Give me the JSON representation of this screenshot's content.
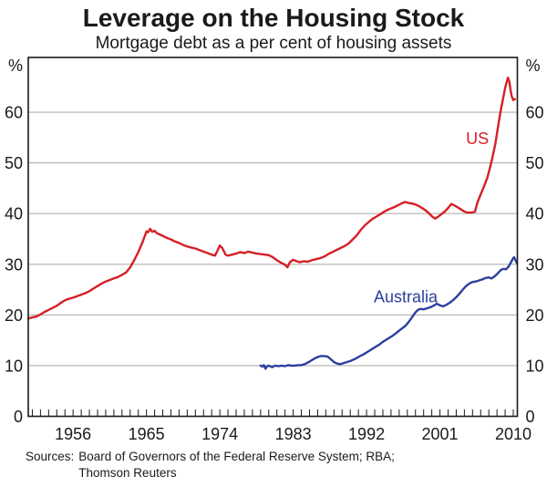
{
  "title": "Leverage on the Housing Stock",
  "subtitle": "Mortgage debt as a per cent of housing assets",
  "sources": {
    "label": "Sources:",
    "line1": "Board of Governors of the Federal Reserve System; RBA;",
    "line2": "Thomson Reuters"
  },
  "chart_data": {
    "type": "line",
    "title": "Leverage on the Housing Stock",
    "subtitle": "Mortgage debt as a per cent of housing assets",
    "unit_label": "%",
    "xlim": [
      1950.5,
      2010.5
    ],
    "ylim": [
      0,
      70.8
    ],
    "x_ticks": [
      1956,
      1965,
      1974,
      1983,
      1992,
      2001,
      2010
    ],
    "y_ticks": [
      0,
      10,
      20,
      30,
      40,
      50,
      60
    ],
    "minor_x_tick_step": 1,
    "grid": "horizontal",
    "legend_position": "inline-labels",
    "axis_color": "#1a1a1a",
    "grid_color": "#b0b0b0",
    "series": [
      {
        "name": "US",
        "color": "#d61f26",
        "label_anchor": [
          2005.6,
          54.8
        ],
        "points": [
          [
            1950.5,
            19.3
          ],
          [
            1951,
            19.5
          ],
          [
            1951.5,
            19.7
          ],
          [
            1952,
            20.1
          ],
          [
            1952.5,
            20.6
          ],
          [
            1953,
            21.0
          ],
          [
            1953.5,
            21.4
          ],
          [
            1954,
            21.8
          ],
          [
            1954.5,
            22.4
          ],
          [
            1955,
            22.9
          ],
          [
            1955.5,
            23.2
          ],
          [
            1956,
            23.4
          ],
          [
            1956.5,
            23.7
          ],
          [
            1957,
            24.0
          ],
          [
            1957.5,
            24.3
          ],
          [
            1958,
            24.7
          ],
          [
            1958.5,
            25.2
          ],
          [
            1959,
            25.7
          ],
          [
            1959.5,
            26.2
          ],
          [
            1960,
            26.6
          ],
          [
            1960.5,
            26.9
          ],
          [
            1961,
            27.2
          ],
          [
            1961.5,
            27.5
          ],
          [
            1962,
            27.9
          ],
          [
            1962.5,
            28.4
          ],
          [
            1963,
            29.4
          ],
          [
            1963.5,
            30.8
          ],
          [
            1964,
            32.4
          ],
          [
            1964.5,
            34.3
          ],
          [
            1964.8,
            35.6
          ],
          [
            1965,
            36.5
          ],
          [
            1965.2,
            36.3
          ],
          [
            1965.45,
            37.0
          ],
          [
            1965.7,
            36.4
          ],
          [
            1966,
            36.6
          ],
          [
            1966.3,
            36.1
          ],
          [
            1966.6,
            35.9
          ],
          [
            1967,
            35.6
          ],
          [
            1967.5,
            35.2
          ],
          [
            1968,
            34.9
          ],
          [
            1968.5,
            34.5
          ],
          [
            1969,
            34.2
          ],
          [
            1969.5,
            33.8
          ],
          [
            1970,
            33.5
          ],
          [
            1970.5,
            33.3
          ],
          [
            1971,
            33.1
          ],
          [
            1971.5,
            32.8
          ],
          [
            1972,
            32.5
          ],
          [
            1972.5,
            32.2
          ],
          [
            1973,
            31.9
          ],
          [
            1973.4,
            31.7
          ],
          [
            1973.7,
            32.6
          ],
          [
            1974,
            33.7
          ],
          [
            1974.3,
            33.2
          ],
          [
            1974.7,
            31.9
          ],
          [
            1975,
            31.7
          ],
          [
            1975.5,
            31.9
          ],
          [
            1976,
            32.1
          ],
          [
            1976.5,
            32.4
          ],
          [
            1977,
            32.2
          ],
          [
            1977.5,
            32.5
          ],
          [
            1978,
            32.3
          ],
          [
            1978.5,
            32.1
          ],
          [
            1979,
            32.0
          ],
          [
            1979.5,
            31.9
          ],
          [
            1980,
            31.8
          ],
          [
            1980.5,
            31.4
          ],
          [
            1981,
            30.8
          ],
          [
            1981.5,
            30.3
          ],
          [
            1982,
            29.9
          ],
          [
            1982.3,
            29.4
          ],
          [
            1982.6,
            30.4
          ],
          [
            1983,
            30.9
          ],
          [
            1983.4,
            30.6
          ],
          [
            1983.8,
            30.4
          ],
          [
            1984.3,
            30.6
          ],
          [
            1984.8,
            30.5
          ],
          [
            1985.3,
            30.8
          ],
          [
            1985.8,
            31.0
          ],
          [
            1986.3,
            31.2
          ],
          [
            1986.8,
            31.5
          ],
          [
            1987.3,
            32.0
          ],
          [
            1987.8,
            32.4
          ],
          [
            1988.3,
            32.8
          ],
          [
            1988.8,
            33.2
          ],
          [
            1989.3,
            33.6
          ],
          [
            1989.8,
            34.1
          ],
          [
            1990.3,
            34.9
          ],
          [
            1990.8,
            35.7
          ],
          [
            1991.3,
            36.8
          ],
          [
            1991.8,
            37.7
          ],
          [
            1992.3,
            38.4
          ],
          [
            1992.8,
            39.0
          ],
          [
            1993.3,
            39.5
          ],
          [
            1993.8,
            40.0
          ],
          [
            1994.3,
            40.5
          ],
          [
            1994.8,
            40.9
          ],
          [
            1995.3,
            41.2
          ],
          [
            1995.8,
            41.6
          ],
          [
            1996.3,
            42.0
          ],
          [
            1996.7,
            42.3
          ],
          [
            1997.1,
            42.1
          ],
          [
            1997.5,
            42.0
          ],
          [
            1998,
            41.8
          ],
          [
            1998.5,
            41.4
          ],
          [
            1999,
            40.9
          ],
          [
            1999.5,
            40.3
          ],
          [
            2000,
            39.5
          ],
          [
            2000.4,
            39.0
          ],
          [
            2000.8,
            39.4
          ],
          [
            2001.2,
            39.9
          ],
          [
            2001.6,
            40.4
          ],
          [
            2002,
            41.1
          ],
          [
            2002.4,
            41.9
          ],
          [
            2002.8,
            41.6
          ],
          [
            2003.2,
            41.2
          ],
          [
            2003.6,
            40.8
          ],
          [
            2004,
            40.4
          ],
          [
            2004.4,
            40.2
          ],
          [
            2004.9,
            40.2
          ],
          [
            2005.3,
            40.4
          ],
          [
            2005.6,
            42.2
          ],
          [
            2006,
            43.8
          ],
          [
            2006.4,
            45.3
          ],
          [
            2006.8,
            47.0
          ],
          [
            2007.1,
            48.8
          ],
          [
            2007.4,
            50.8
          ],
          [
            2007.8,
            53.8
          ],
          [
            2008.1,
            56.8
          ],
          [
            2008.4,
            59.8
          ],
          [
            2008.7,
            62.3
          ],
          [
            2009,
            64.8
          ],
          [
            2009.2,
            66.0
          ],
          [
            2009.35,
            66.8
          ],
          [
            2009.5,
            66.1
          ],
          [
            2009.65,
            64.5
          ],
          [
            2009.8,
            63.2
          ],
          [
            2010,
            62.4
          ],
          [
            2010.2,
            62.6
          ]
        ]
      },
      {
        "name": "Australia",
        "color": "#2b3f9e",
        "label_anchor": [
          1996.8,
          23.6
        ],
        "points": [
          [
            1979,
            10.0
          ],
          [
            1979.2,
            9.8
          ],
          [
            1979.4,
            10.1
          ],
          [
            1979.6,
            9.4
          ],
          [
            1979.8,
            9.9
          ],
          [
            1980,
            10.0
          ],
          [
            1980.4,
            9.7
          ],
          [
            1980.8,
            10.0
          ],
          [
            1981.2,
            9.9
          ],
          [
            1981.6,
            10.0
          ],
          [
            1982,
            9.9
          ],
          [
            1982.4,
            10.1
          ],
          [
            1982.8,
            10.0
          ],
          [
            1983.2,
            10.0
          ],
          [
            1983.6,
            10.1
          ],
          [
            1984,
            10.1
          ],
          [
            1984.4,
            10.3
          ],
          [
            1984.8,
            10.6
          ],
          [
            1985.2,
            11.0
          ],
          [
            1985.6,
            11.4
          ],
          [
            1986,
            11.7
          ],
          [
            1986.4,
            11.9
          ],
          [
            1986.8,
            11.9
          ],
          [
            1987.2,
            11.8
          ],
          [
            1987.6,
            11.3
          ],
          [
            1988,
            10.7
          ],
          [
            1988.4,
            10.4
          ],
          [
            1988.8,
            10.3
          ],
          [
            1989.2,
            10.5
          ],
          [
            1989.6,
            10.7
          ],
          [
            1990,
            10.9
          ],
          [
            1990.4,
            11.2
          ],
          [
            1990.8,
            11.5
          ],
          [
            1991.2,
            11.9
          ],
          [
            1991.6,
            12.2
          ],
          [
            1992,
            12.6
          ],
          [
            1992.4,
            13.0
          ],
          [
            1992.8,
            13.4
          ],
          [
            1993.2,
            13.8
          ],
          [
            1993.6,
            14.2
          ],
          [
            1994,
            14.7
          ],
          [
            1994.4,
            15.1
          ],
          [
            1994.8,
            15.5
          ],
          [
            1995.2,
            15.9
          ],
          [
            1995.6,
            16.4
          ],
          [
            1996,
            16.9
          ],
          [
            1996.4,
            17.4
          ],
          [
            1996.8,
            17.9
          ],
          [
            1997.2,
            18.7
          ],
          [
            1997.6,
            19.6
          ],
          [
            1998,
            20.5
          ],
          [
            1998.3,
            21.0
          ],
          [
            1998.6,
            21.2
          ],
          [
            1999,
            21.1
          ],
          [
            1999.4,
            21.3
          ],
          [
            1999.8,
            21.5
          ],
          [
            2000.2,
            21.8
          ],
          [
            2000.6,
            22.2
          ],
          [
            2001,
            21.9
          ],
          [
            2001.4,
            21.7
          ],
          [
            2001.8,
            22.0
          ],
          [
            2002.2,
            22.4
          ],
          [
            2002.6,
            22.9
          ],
          [
            2003,
            23.5
          ],
          [
            2003.4,
            24.2
          ],
          [
            2003.8,
            25.0
          ],
          [
            2004.2,
            25.7
          ],
          [
            2004.6,
            26.2
          ],
          [
            2005,
            26.5
          ],
          [
            2005.4,
            26.6
          ],
          [
            2005.8,
            26.8
          ],
          [
            2006.2,
            27.0
          ],
          [
            2006.6,
            27.3
          ],
          [
            2007,
            27.4
          ],
          [
            2007.3,
            27.2
          ],
          [
            2007.6,
            27.5
          ],
          [
            2007.9,
            27.9
          ],
          [
            2008.2,
            28.4
          ],
          [
            2008.5,
            28.9
          ],
          [
            2008.8,
            29.1
          ],
          [
            2009.1,
            29.0
          ],
          [
            2009.4,
            29.5
          ],
          [
            2009.7,
            30.3
          ],
          [
            2009.95,
            31.1
          ],
          [
            2010.1,
            31.4
          ],
          [
            2010.3,
            30.7
          ],
          [
            2010.45,
            30.2
          ]
        ]
      }
    ]
  }
}
